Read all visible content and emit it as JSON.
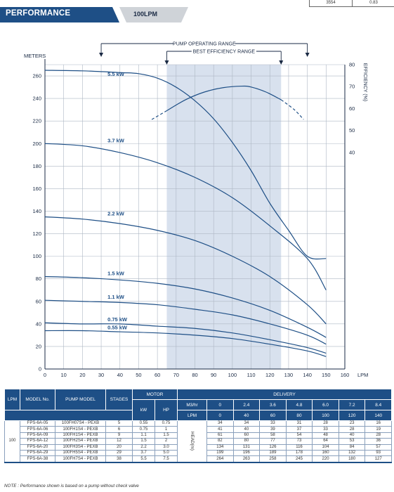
{
  "top_box": {
    "left": "3554",
    "right": "0.83"
  },
  "header": {
    "title": "PERFORMANCE",
    "subtitle": "100LPM"
  },
  "colors": {
    "brand": "#1e4f86",
    "curve": "#1e4f86",
    "band": "#d8e1ee",
    "grid": "#aeb7c4"
  },
  "chart_data": {
    "type": "line",
    "y_label": "METERS",
    "x_unit": "LPM",
    "y2_label": "EFFICIENCY (%)",
    "xlim": [
      0,
      160
    ],
    "ylim": [
      0,
      270
    ],
    "y2lim": [
      30,
      80
    ],
    "x_ticks": [
      0,
      10,
      20,
      30,
      40,
      50,
      60,
      70,
      80,
      90,
      100,
      110,
      120,
      130,
      140,
      150,
      160
    ],
    "y_ticks": [
      0,
      20,
      40,
      60,
      80,
      100,
      120,
      140,
      160,
      180,
      200,
      220,
      240,
      260
    ],
    "y2_ticks": [
      40,
      50,
      60,
      70,
      80
    ],
    "grid": true,
    "ranges": {
      "pump_operating": {
        "label": "PUMP OPERATING RANGE",
        "from": 30,
        "to": 140
      },
      "best_efficiency": {
        "label": "BEST EFFICIENCY RANGE",
        "from": 65,
        "to": 126
      }
    },
    "series": [
      {
        "name": "5.5 kW",
        "label_x": 33,
        "points": [
          [
            0,
            265
          ],
          [
            20,
            264.5
          ],
          [
            40,
            263
          ],
          [
            50,
            262
          ],
          [
            60,
            258
          ],
          [
            70,
            250
          ],
          [
            80,
            238
          ],
          [
            90,
            222
          ],
          [
            100,
            201
          ],
          [
            110,
            176
          ],
          [
            120,
            147
          ],
          [
            130,
            123
          ],
          [
            140,
            100
          ],
          [
            150,
            98
          ]
        ]
      },
      {
        "name": "3.7 kW",
        "label_x": 33,
        "points": [
          [
            0,
            200
          ],
          [
            20,
            198
          ],
          [
            40,
            192
          ],
          [
            60,
            183
          ],
          [
            80,
            170
          ],
          [
            100,
            152
          ],
          [
            120,
            127
          ],
          [
            140,
            98
          ],
          [
            150,
            70
          ]
        ]
      },
      {
        "name": "2.2 kW",
        "label_x": 33,
        "points": [
          [
            0,
            135
          ],
          [
            20,
            133
          ],
          [
            40,
            129
          ],
          [
            60,
            123
          ],
          [
            80,
            114
          ],
          [
            100,
            100
          ],
          [
            120,
            82
          ],
          [
            140,
            57
          ],
          [
            150,
            40
          ]
        ]
      },
      {
        "name": "1.5 kW",
        "label_x": 33,
        "points": [
          [
            0,
            82
          ],
          [
            20,
            81
          ],
          [
            40,
            79
          ],
          [
            60,
            76
          ],
          [
            80,
            71
          ],
          [
            100,
            63
          ],
          [
            120,
            52
          ],
          [
            140,
            37
          ],
          [
            150,
            28
          ]
        ]
      },
      {
        "name": "1.1 kW",
        "label_x": 33,
        "points": [
          [
            0,
            61
          ],
          [
            20,
            60
          ],
          [
            40,
            59
          ],
          [
            60,
            57
          ],
          [
            80,
            53
          ],
          [
            100,
            48
          ],
          [
            120,
            40
          ],
          [
            140,
            30
          ],
          [
            150,
            22
          ]
        ]
      },
      {
        "name": "0.75 kW",
        "label_x": 33,
        "points": [
          [
            0,
            41
          ],
          [
            20,
            40
          ],
          [
            40,
            40
          ],
          [
            60,
            38
          ],
          [
            80,
            36
          ],
          [
            100,
            32
          ],
          [
            120,
            26
          ],
          [
            140,
            19
          ],
          [
            150,
            14
          ]
        ]
      },
      {
        "name": "0.55 kW",
        "label_x": 33,
        "points": [
          [
            0,
            34
          ],
          [
            20,
            34
          ],
          [
            40,
            33
          ],
          [
            60,
            32
          ],
          [
            80,
            30
          ],
          [
            100,
            27
          ],
          [
            120,
            22
          ],
          [
            140,
            16
          ],
          [
            150,
            11
          ]
        ]
      }
    ],
    "efficiency_curve": {
      "solid": [
        [
          65,
          59
        ],
        [
          75,
          64
        ],
        [
          85,
          67.5
        ],
        [
          95,
          69.5
        ],
        [
          105,
          70.2
        ],
        [
          110,
          69.8
        ],
        [
          118,
          67.5
        ],
        [
          126,
          64
        ]
      ],
      "dashed_left": [
        [
          57,
          55
        ],
        [
          65,
          59
        ]
      ],
      "dashed_right": [
        [
          126,
          64
        ],
        [
          133,
          59.5
        ],
        [
          138,
          55
        ]
      ]
    }
  },
  "table": {
    "headers": {
      "lpm": "LPM",
      "model_no": "MODEL No.",
      "pump_model": "PUMP MODEL",
      "stages": "STAGES",
      "motor": "MOTOR",
      "kw": "kW",
      "hp": "HP",
      "delivery": "DELIVERY",
      "m3hr": "M3/hr",
      "lpm_row": "LPM"
    },
    "m3hr_values": [
      "0",
      "2.4",
      "3.6",
      "4.8",
      "6.0",
      "7.2",
      "8.4"
    ],
    "lpm_values": [
      "0",
      "40",
      "60",
      "80",
      "100",
      "120",
      "140"
    ],
    "lpm_label": "100",
    "head_label": "HEAD(m)",
    "rows": [
      {
        "model": "FPS-6A-05",
        "pump": "100FH07S4 - PEXB",
        "stages": "5",
        "kw": "0.55",
        "hp": "0.75",
        "head": [
          "34",
          "34",
          "33",
          "31",
          "28",
          "23",
          "16"
        ]
      },
      {
        "model": "FPS-6A-06",
        "pump": "100FH1S4 - PEXB",
        "stages": "6",
        "kw": "0.75",
        "hp": "1",
        "head": [
          "41",
          "40",
          "39",
          "37",
          "33",
          "28",
          "19"
        ]
      },
      {
        "model": "FPS-6A-09",
        "pump": "100FH1S4 - PEXB",
        "stages": "9",
        "kw": "1.1",
        "hp": "1.5",
        "head": [
          "61",
          "60",
          "58",
          "54",
          "48",
          "40",
          "28"
        ]
      },
      {
        "model": "FPS-6A-12",
        "pump": "100FH2S4 - PEXB",
        "stages": "12",
        "kw": "1.5",
        "hp": "2",
        "head": [
          "82",
          "80",
          "77",
          "73",
          "64",
          "53",
          "36"
        ]
      },
      {
        "model": "FPS-6A-20",
        "pump": "100FH3S4 - PEXB",
        "stages": "20",
        "kw": "2.2",
        "hp": "3.0",
        "head": [
          "134",
          "131",
          "126",
          "116",
          "104",
          "84",
          "57"
        ]
      },
      {
        "model": "FPS-6A-29",
        "pump": "100FH5S4 - PEXB",
        "stages": "29",
        "kw": "3.7",
        "hp": "5.0",
        "head": [
          "199",
          "196",
          "189",
          "178",
          "160",
          "132",
          "93"
        ]
      },
      {
        "model": "FPS-6A-38",
        "pump": "100FH7S4 - PEXB",
        "stages": "38",
        "kw": "5.5",
        "hp": "7.5",
        "head": [
          "264",
          "263",
          "258",
          "245",
          "220",
          "180",
          "127"
        ]
      }
    ]
  },
  "note": "NOTE : Performance shown is based on a pump without check valve"
}
